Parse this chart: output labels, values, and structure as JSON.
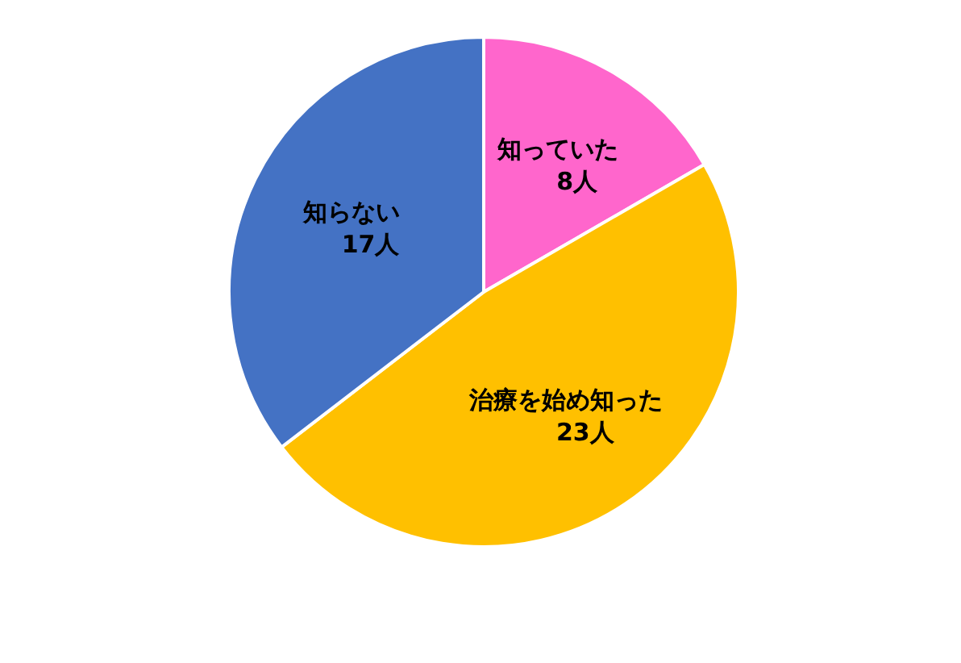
{
  "chart_data": {
    "type": "pie",
    "categories": [
      "知っていた",
      "治療を始め知った",
      "知らない"
    ],
    "values": [
      8,
      23,
      17
    ],
    "value_labels": [
      "8人",
      "23人",
      "17人"
    ],
    "colors": [
      "#ff66cc",
      "#ffc000",
      "#4472c4"
    ]
  }
}
